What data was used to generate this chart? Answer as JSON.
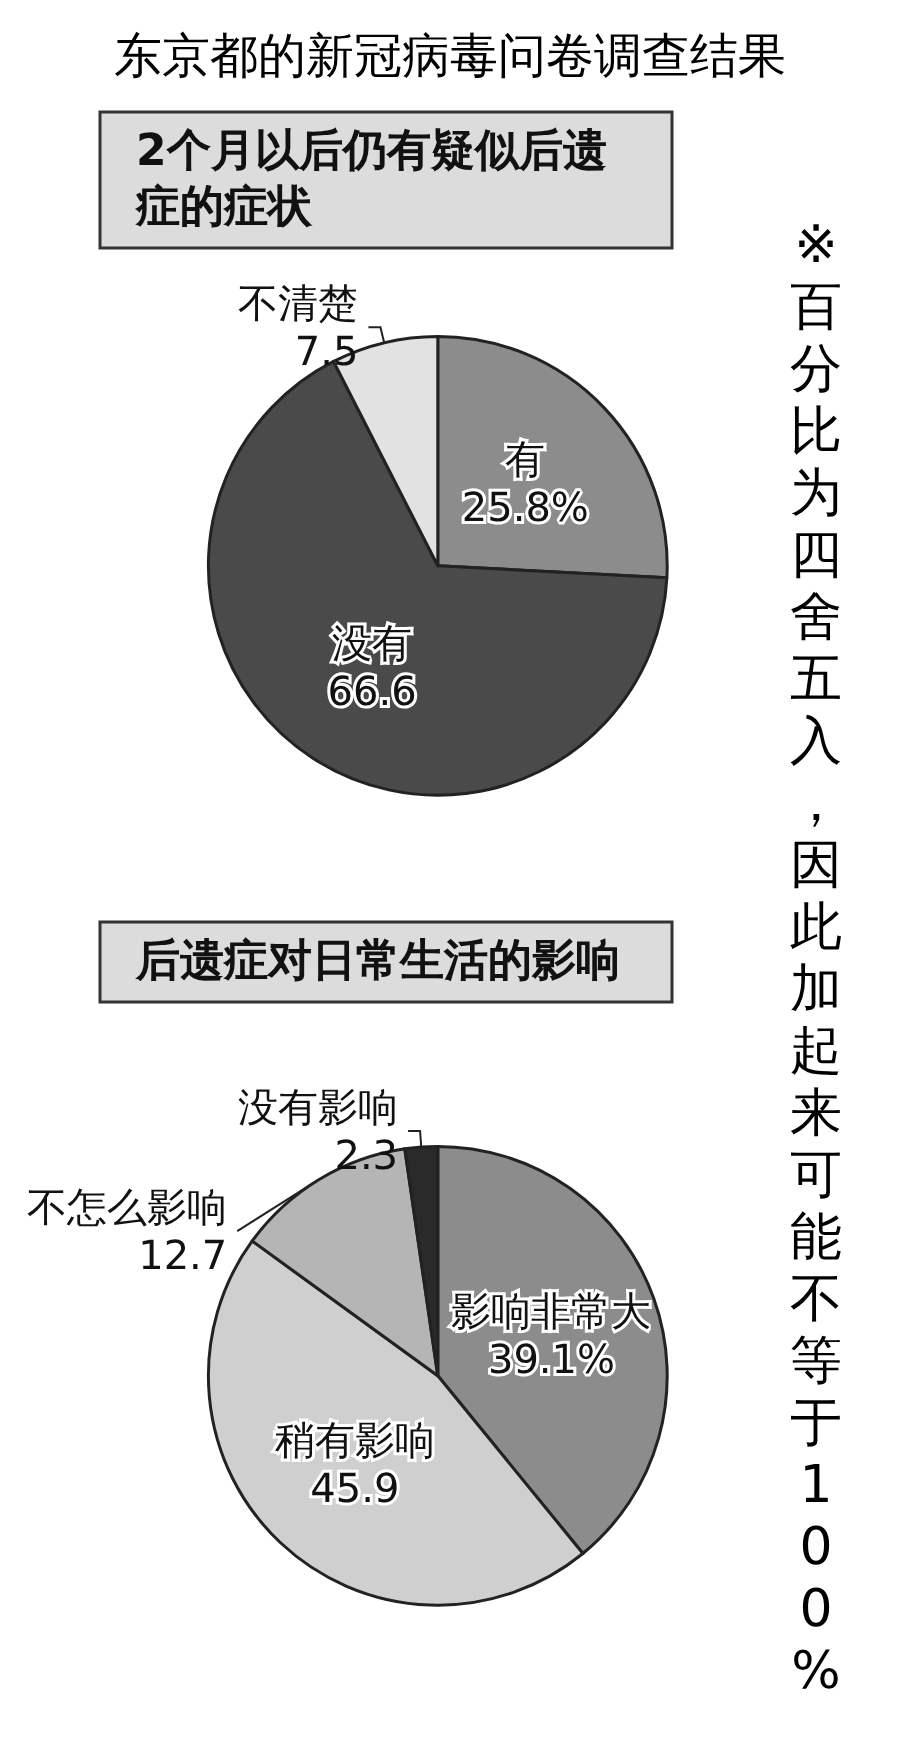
{
  "chart_data": [
    {
      "type": "pie",
      "title": "东京都的新冠病毒问卷调查结果",
      "subtitle": "2个月以后仍有疑似后遗症的症状",
      "categories": [
        "有",
        "没有",
        "不清楚"
      ],
      "values": [
        25.8,
        66.6,
        7.5
      ],
      "value_labels": [
        "25.8%",
        "66.6",
        "7.5"
      ],
      "colors": [
        "#8c8c8c",
        "#4a4a4a",
        "#e2e2e2"
      ],
      "annotations": [
        "※百分比为四舍五入，因此加起来可能不等于100%"
      ],
      "legend": false
    },
    {
      "type": "pie",
      "title": "后遗症对日常生活的影响",
      "categories": [
        "影响非常大",
        "稍有影响",
        "不怎么影响",
        "没有影响"
      ],
      "values": [
        39.1,
        45.9,
        12.7,
        2.3
      ],
      "value_labels": [
        "39.1%",
        "45.9",
        "12.7",
        "2.3"
      ],
      "colors": [
        "#8c8c8c",
        "#cfcfcf",
        "#b5b5b5",
        "#2a2a2a"
      ],
      "legend": false
    }
  ]
}
